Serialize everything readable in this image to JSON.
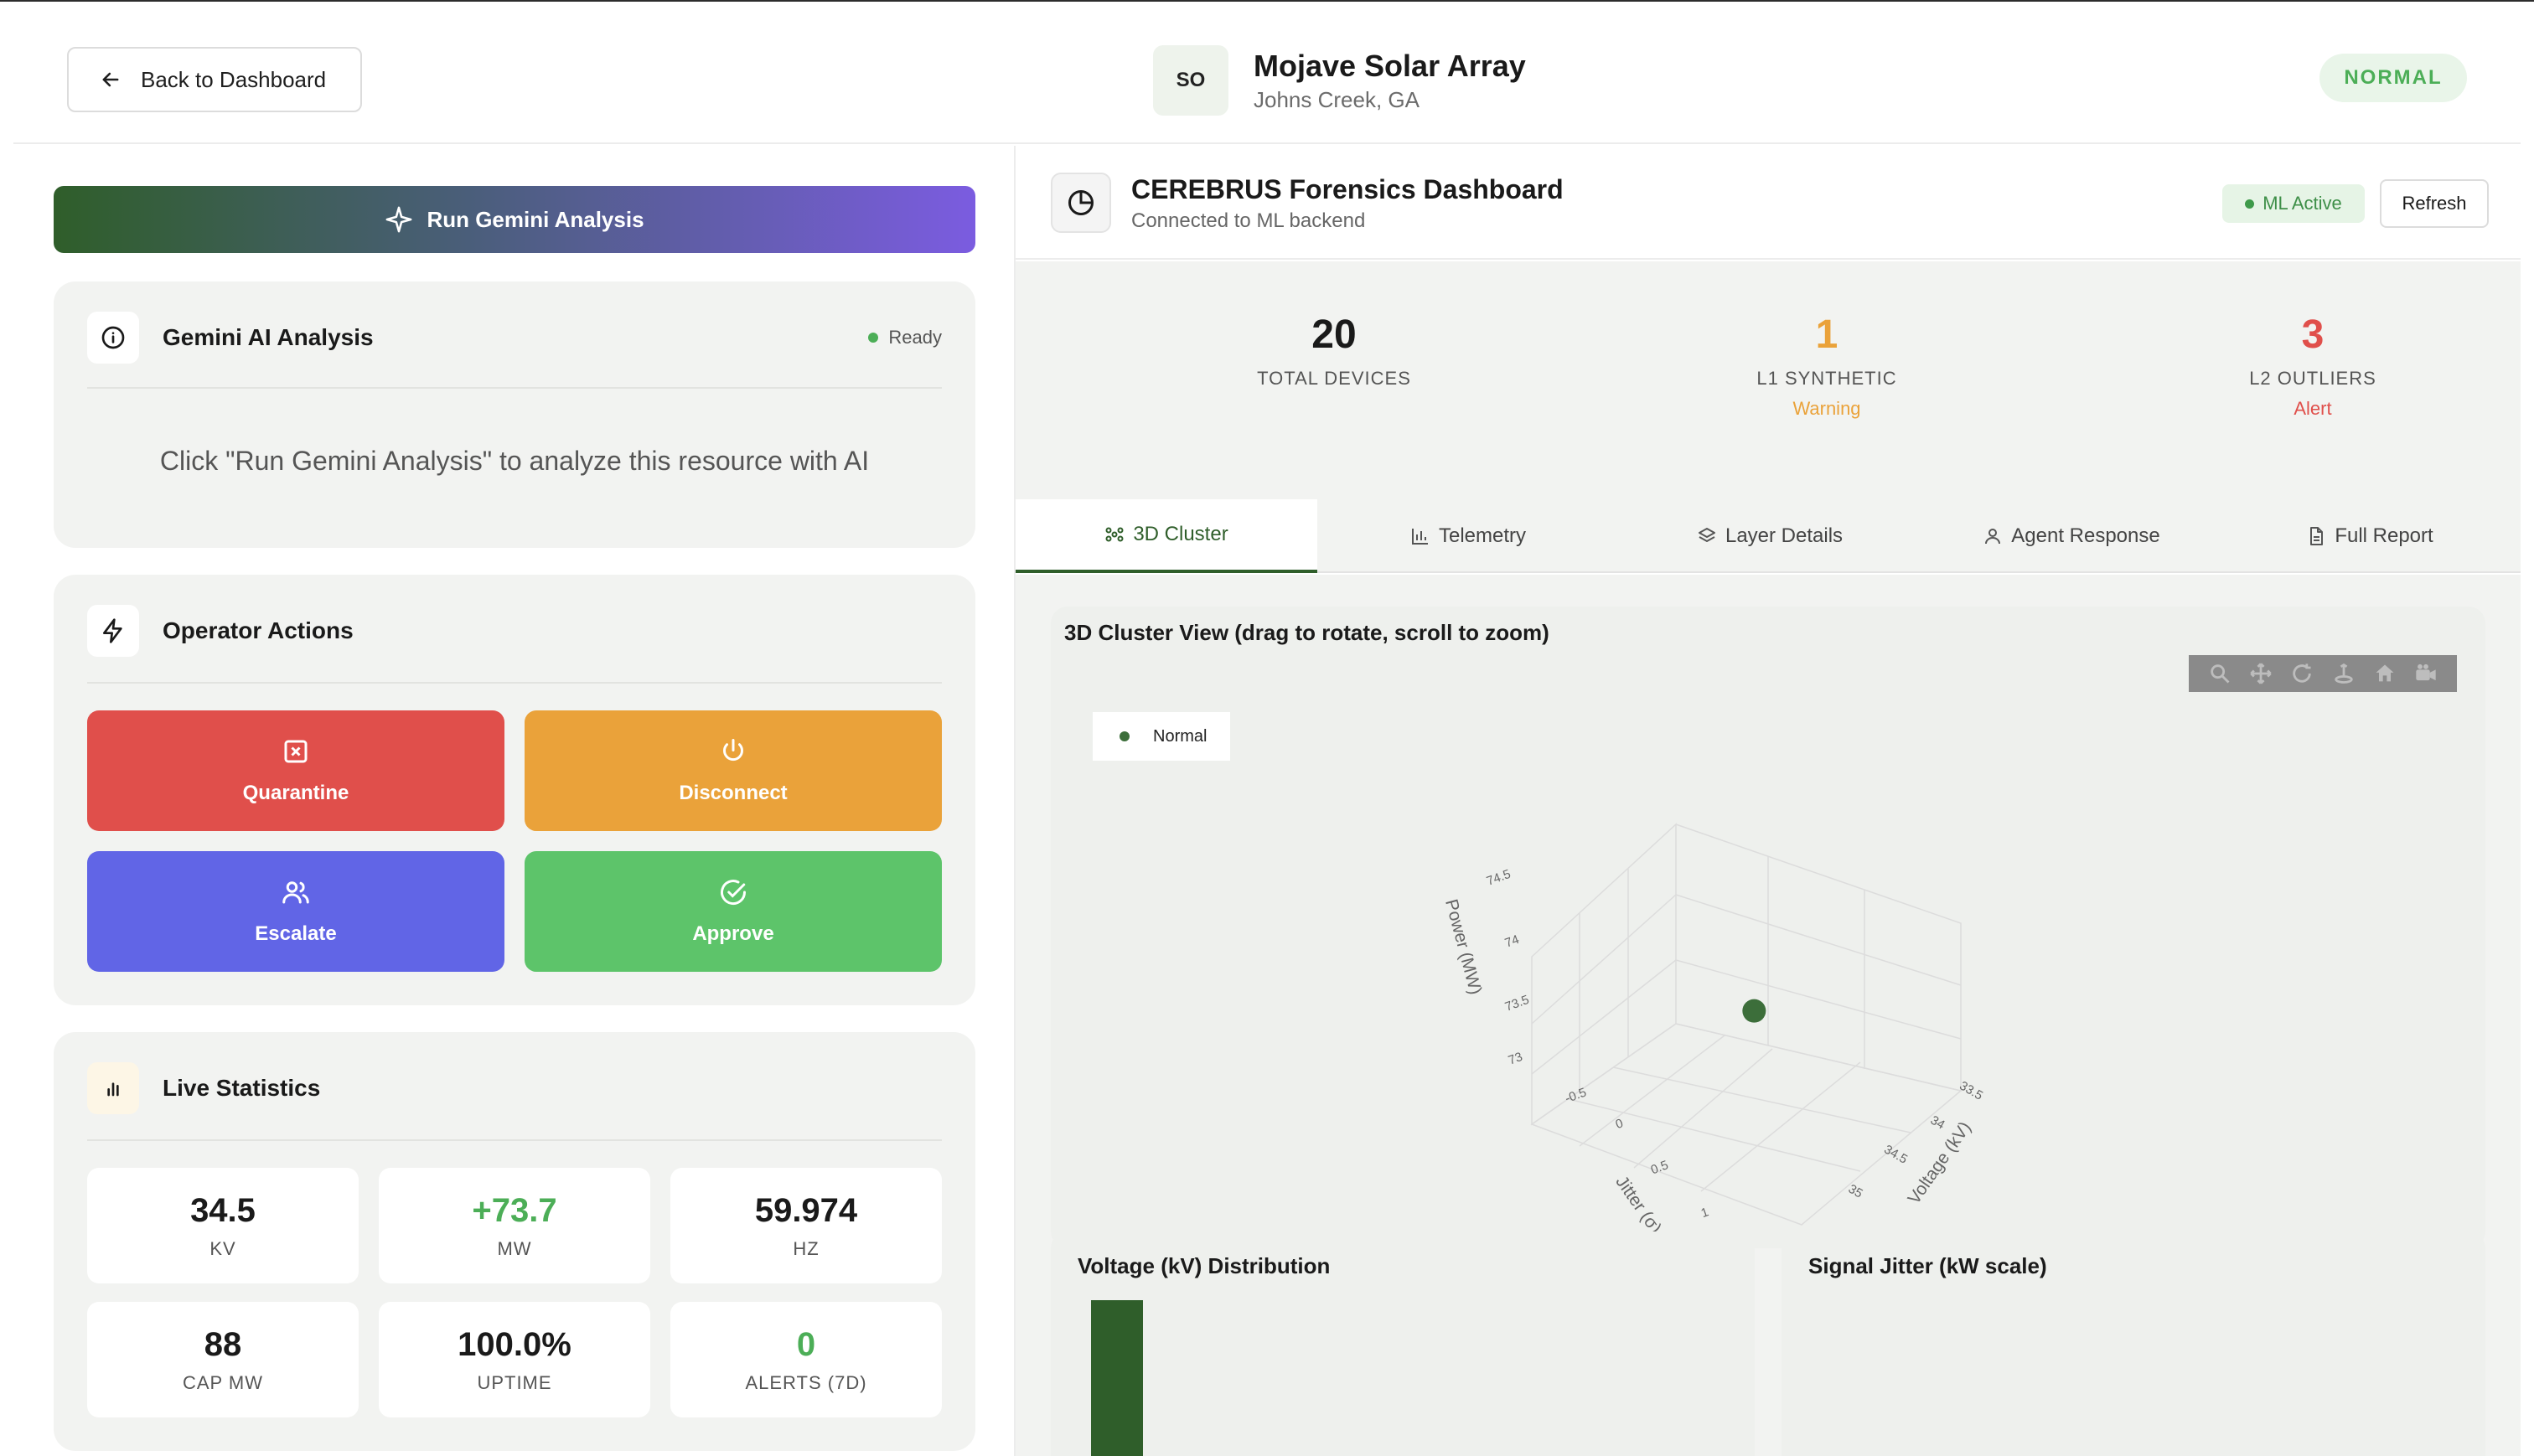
{
  "header": {
    "back_label": "Back to Dashboard",
    "avatar_initials": "SO",
    "site_name": "Mojave Solar Array",
    "site_location": "Johns Creek, GA",
    "status": "NORMAL",
    "status_color": "#4cae57"
  },
  "gemini": {
    "run_label": "Run Gemini Analysis",
    "card_title": "Gemini AI Analysis",
    "status": "Ready",
    "prompt": "Click \"Run Gemini Analysis\" to analyze this resource with AI"
  },
  "operator_actions": {
    "title": "Operator Actions",
    "buttons": [
      {
        "label": "Quarantine",
        "icon": "x-square-icon",
        "color": "#e04f4b"
      },
      {
        "label": "Disconnect",
        "icon": "power-icon",
        "color": "#eaa23a"
      },
      {
        "label": "Escalate",
        "icon": "users-icon",
        "color": "#6165e6"
      },
      {
        "label": "Approve",
        "icon": "check-circle-icon",
        "color": "#5dc46a"
      }
    ]
  },
  "live_statistics": {
    "title": "Live Statistics",
    "stats": [
      {
        "value": "34.5",
        "label": "KV",
        "color": "#1a1a1a"
      },
      {
        "value": "+73.7",
        "label": "MW",
        "color": "#4cae57"
      },
      {
        "value": "59.974",
        "label": "HZ",
        "color": "#1a1a1a"
      },
      {
        "value": "88",
        "label": "CAP MW",
        "color": "#1a1a1a"
      },
      {
        "value": "100.0%",
        "label": "UPTIME",
        "color": "#1a1a1a"
      },
      {
        "value": "0",
        "label": "ALERTS (7D)",
        "color": "#4cae57"
      }
    ]
  },
  "forensics": {
    "title": "CEREBRUS Forensics Dashboard",
    "subtitle": "Connected to ML backend",
    "ml_badge": "ML Active",
    "refresh_label": "Refresh",
    "metrics": [
      {
        "value": "20",
        "label": "TOTAL DEVICES",
        "sub": "",
        "color": "#1a1a1a"
      },
      {
        "value": "1",
        "label": "L1 SYNTHETIC",
        "sub": "Warning",
        "color": "#eaa23a"
      },
      {
        "value": "3",
        "label": "L2 OUTLIERS",
        "sub": "Alert",
        "color": "#e04f4b"
      }
    ],
    "tabs": [
      {
        "label": "3D Cluster",
        "icon": "cluster-icon",
        "active": true
      },
      {
        "label": "Telemetry",
        "icon": "bar-chart-icon",
        "active": false
      },
      {
        "label": "Layer Details",
        "icon": "layers-icon",
        "active": false
      },
      {
        "label": "Agent Response",
        "icon": "user-icon",
        "active": false
      },
      {
        "label": "Full Report",
        "icon": "document-icon",
        "active": false
      }
    ]
  },
  "cluster_view": {
    "title": "3D Cluster View (drag to rotate, scroll to zoom)",
    "legend_label": "Normal",
    "point_color": "#3c6e3a"
  },
  "chart_data": [
    {
      "type": "scatter",
      "title": "",
      "series": [
        {
          "name": "Normal",
          "x": [
            34.5
          ],
          "y": [
            0
          ],
          "z": [
            73.7
          ]
        }
      ],
      "xlabel": "Voltage (kV)",
      "ylabel": "Jitter (σ)",
      "zlabel": "Power (MW)",
      "x_ticks": [
        "33.5",
        "34",
        "34.5",
        "35"
      ],
      "y_ticks": [
        "-0.5",
        "0",
        "0.5",
        "1"
      ],
      "z_ticks": [
        "73",
        "73.5",
        "74",
        "74.5"
      ]
    },
    {
      "type": "bar",
      "title": "Voltage (kV) Distribution",
      "color": "#2f5e2a"
    },
    {
      "type": "bar",
      "title": "Signal Jitter (kW scale)"
    }
  ]
}
